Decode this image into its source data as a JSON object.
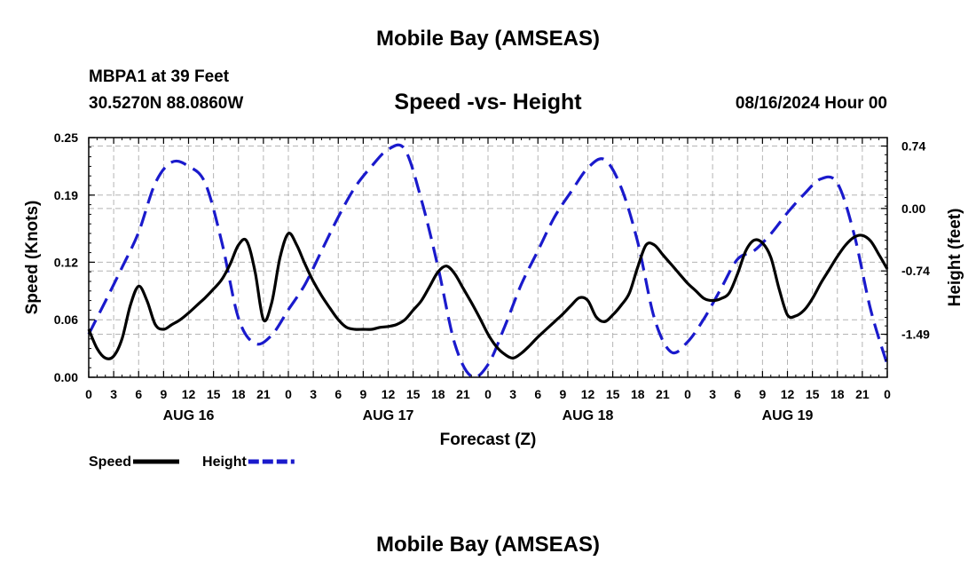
{
  "page": {
    "title_top": "Mobile Bay (AMSEAS)",
    "title_bottom": "Mobile Bay (AMSEAS)",
    "station": "MBPA1 at 39 Feet",
    "coordinates": "30.5270N  88.0860W",
    "forecast_date": "08/16/2024 Hour 00"
  },
  "chart_data": {
    "type": "line",
    "title": "Speed -vs- Height",
    "xlabel": "Forecast (Z)",
    "ylabel": "Speed (Knots)",
    "y2label": "Height (feet)",
    "x_unit": "hours since 08/16/2024 00Z",
    "xlim": [
      0,
      96
    ],
    "x_ticks": [
      0,
      3,
      6,
      9,
      12,
      15,
      18,
      21,
      24,
      27,
      30,
      33,
      36,
      39,
      42,
      45,
      48,
      51,
      54,
      57,
      60,
      63,
      66,
      69,
      72,
      75,
      78,
      81,
      84,
      87,
      90,
      93,
      96
    ],
    "x_tick_labels": [
      "0",
      "3",
      "6",
      "9",
      "12",
      "15",
      "18",
      "21",
      "0",
      "3",
      "6",
      "9",
      "12",
      "15",
      "18",
      "21",
      "0",
      "3",
      "6",
      "9",
      "12",
      "15",
      "18",
      "21",
      "0",
      "3",
      "6",
      "9",
      "12",
      "15",
      "18",
      "21",
      "0"
    ],
    "day_labels": [
      {
        "x": 12,
        "label": "AUG 16"
      },
      {
        "x": 36,
        "label": "AUG 17"
      },
      {
        "x": 60,
        "label": "AUG 18"
      },
      {
        "x": 84,
        "label": "AUG 19"
      }
    ],
    "ylim": [
      0,
      0.25
    ],
    "y_ticks": [
      0,
      0.06,
      0.12,
      0.19,
      0.25
    ],
    "y_tick_labels": [
      "0.00",
      "0.06",
      "0.12",
      "0.19",
      "0.25"
    ],
    "y2lim": [
      -2.0,
      0.84
    ],
    "y2_ticks": [
      -1.49,
      -0.74,
      0.0,
      0.74
    ],
    "y2_tick_labels": [
      "-1.49",
      "-0.74",
      "0.00",
      "0.74"
    ],
    "grid": true,
    "legend_position": "bottom-left",
    "series": [
      {
        "name": "Speed",
        "axis": "left",
        "color": "#000000",
        "dash": "solid",
        "x": [
          0,
          1,
          2,
          3,
          4,
          5,
          6,
          7,
          8,
          9,
          10,
          11,
          12,
          13,
          14,
          15,
          16,
          17,
          18,
          19,
          20,
          21,
          22,
          23,
          24,
          25,
          26,
          27,
          28,
          29,
          30,
          31,
          32,
          33,
          34,
          35,
          36,
          37,
          38,
          39,
          40,
          41,
          42,
          43,
          44,
          45,
          46,
          47,
          48,
          49,
          50,
          51,
          52,
          53,
          54,
          55,
          56,
          57,
          58,
          59,
          60,
          61,
          62,
          63,
          64,
          65,
          66,
          67,
          68,
          69,
          70,
          71,
          72,
          73,
          74,
          75,
          76,
          77,
          78,
          79,
          80,
          81,
          82,
          83,
          84,
          85,
          86,
          87,
          88,
          89,
          90,
          91,
          92,
          93,
          94,
          95,
          96
        ],
        "y": [
          0.05,
          0.03,
          0.02,
          0.022,
          0.04,
          0.075,
          0.095,
          0.08,
          0.055,
          0.05,
          0.055,
          0.06,
          0.067,
          0.075,
          0.083,
          0.092,
          0.102,
          0.118,
          0.138,
          0.142,
          0.11,
          0.06,
          0.078,
          0.125,
          0.15,
          0.138,
          0.118,
          0.1,
          0.085,
          0.072,
          0.06,
          0.052,
          0.05,
          0.05,
          0.05,
          0.052,
          0.053,
          0.055,
          0.06,
          0.07,
          0.08,
          0.095,
          0.11,
          0.116,
          0.108,
          0.093,
          0.078,
          0.062,
          0.045,
          0.032,
          0.024,
          0.02,
          0.025,
          0.033,
          0.042,
          0.05,
          0.058,
          0.066,
          0.075,
          0.083,
          0.08,
          0.063,
          0.058,
          0.065,
          0.075,
          0.088,
          0.115,
          0.138,
          0.138,
          0.128,
          0.118,
          0.108,
          0.098,
          0.09,
          0.082,
          0.08,
          0.082,
          0.088,
          0.108,
          0.132,
          0.143,
          0.14,
          0.125,
          0.092,
          0.065,
          0.064,
          0.07,
          0.082,
          0.098,
          0.112,
          0.126,
          0.138,
          0.146,
          0.148,
          0.142,
          0.128,
          0.113
        ]
      },
      {
        "name": "Height",
        "axis": "right",
        "color": "#1a1acc",
        "dash": "dashed",
        "x": [
          0,
          2,
          4,
          6,
          8,
          10,
          12,
          14,
          16,
          18,
          20,
          22,
          24,
          26,
          28,
          30,
          32,
          34,
          36,
          38,
          40,
          42,
          44,
          46,
          48,
          50,
          52,
          54,
          56,
          58,
          60,
          62,
          64,
          66,
          68,
          70,
          72,
          74,
          76,
          78,
          80,
          82,
          84,
          86,
          88,
          90,
          92,
          94,
          96
        ],
        "y": [
          -1.49,
          -1.1,
          -0.7,
          -0.28,
          0.3,
          0.55,
          0.5,
          0.3,
          -0.4,
          -1.3,
          -1.6,
          -1.5,
          -1.2,
          -0.9,
          -0.5,
          -0.1,
          0.25,
          0.5,
          0.7,
          0.7,
          0.1,
          -0.7,
          -1.6,
          -1.99,
          -1.85,
          -1.4,
          -0.9,
          -0.5,
          -0.1,
          0.2,
          0.48,
          0.58,
          0.25,
          -0.4,
          -1.3,
          -1.7,
          -1.58,
          -1.3,
          -0.95,
          -0.6,
          -0.5,
          -0.3,
          -0.05,
          0.17,
          0.35,
          0.3,
          -0.3,
          -1.2,
          -1.85
        ]
      }
    ]
  }
}
